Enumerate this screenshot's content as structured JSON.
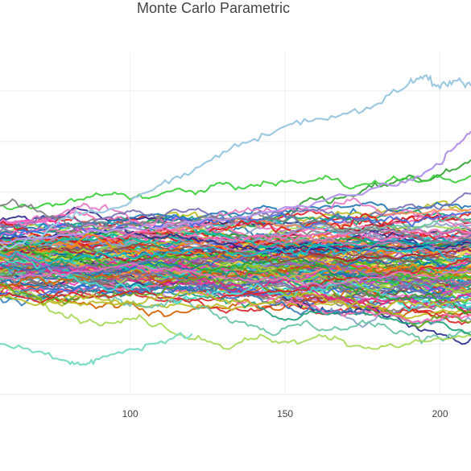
{
  "chart_data": {
    "type": "line",
    "title": "Monte Carlo Parametric",
    "xlabel": "",
    "ylabel": "",
    "x_ticks": [
      100,
      150,
      200
    ],
    "xlim": [
      58,
      210
    ],
    "ylim": [
      0,
      7
    ],
    "grid": true,
    "legend": "none",
    "series_count": 150,
    "steps": 152,
    "highlight_series": [
      {
        "color": "#9ecae1",
        "x": [
          58,
          70,
          80,
          90,
          100,
          110,
          120,
          130,
          140,
          150,
          160,
          170,
          180,
          190,
          195,
          200,
          205,
          210
        ],
        "values": [
          2.85,
          3.1,
          3.55,
          3.6,
          3.8,
          4.15,
          4.4,
          4.8,
          5.05,
          5.3,
          5.45,
          5.55,
          5.75,
          6.15,
          6.3,
          6.05,
          6.2,
          6.1
        ]
      },
      {
        "color": "#b497e8",
        "x": [
          58,
          80,
          100,
          120,
          140,
          160,
          180,
          190,
          200,
          205,
          210
        ],
        "values": [
          3.0,
          3.15,
          3.3,
          3.4,
          3.55,
          3.8,
          4.1,
          4.25,
          4.55,
          4.9,
          5.2
        ]
      },
      {
        "color": "#7fdcc5",
        "x": [
          58,
          70,
          80,
          85,
          90,
          100,
          110,
          120
        ],
        "values": [
          1.0,
          0.85,
          0.65,
          0.6,
          0.7,
          0.9,
          1.05,
          1.2
        ]
      }
    ],
    "palette": [
      "#1f77b4",
      "#ff7f0e",
      "#2ca02c",
      "#d62728",
      "#9467bd",
      "#8c564b",
      "#e377c2",
      "#7f7f7f",
      "#bcbd22",
      "#17becf",
      "#e41a1c",
      "#377eb8",
      "#4daf4a",
      "#984ea3",
      "#ff33cc",
      "#a6d854",
      "#66c2a5",
      "#fc8d62",
      "#8da0cb",
      "#00c0a0",
      "#f0e442",
      "#0072b2",
      "#d55e00",
      "#cc79a7",
      "#1b9e77",
      "#7570b3",
      "#e7298a",
      "#66a61e",
      "#2b2b8c",
      "#b2182b",
      "#40e0d0",
      "#9acd32",
      "#ff69b4",
      "#4169e1",
      "#32cd32"
    ]
  }
}
